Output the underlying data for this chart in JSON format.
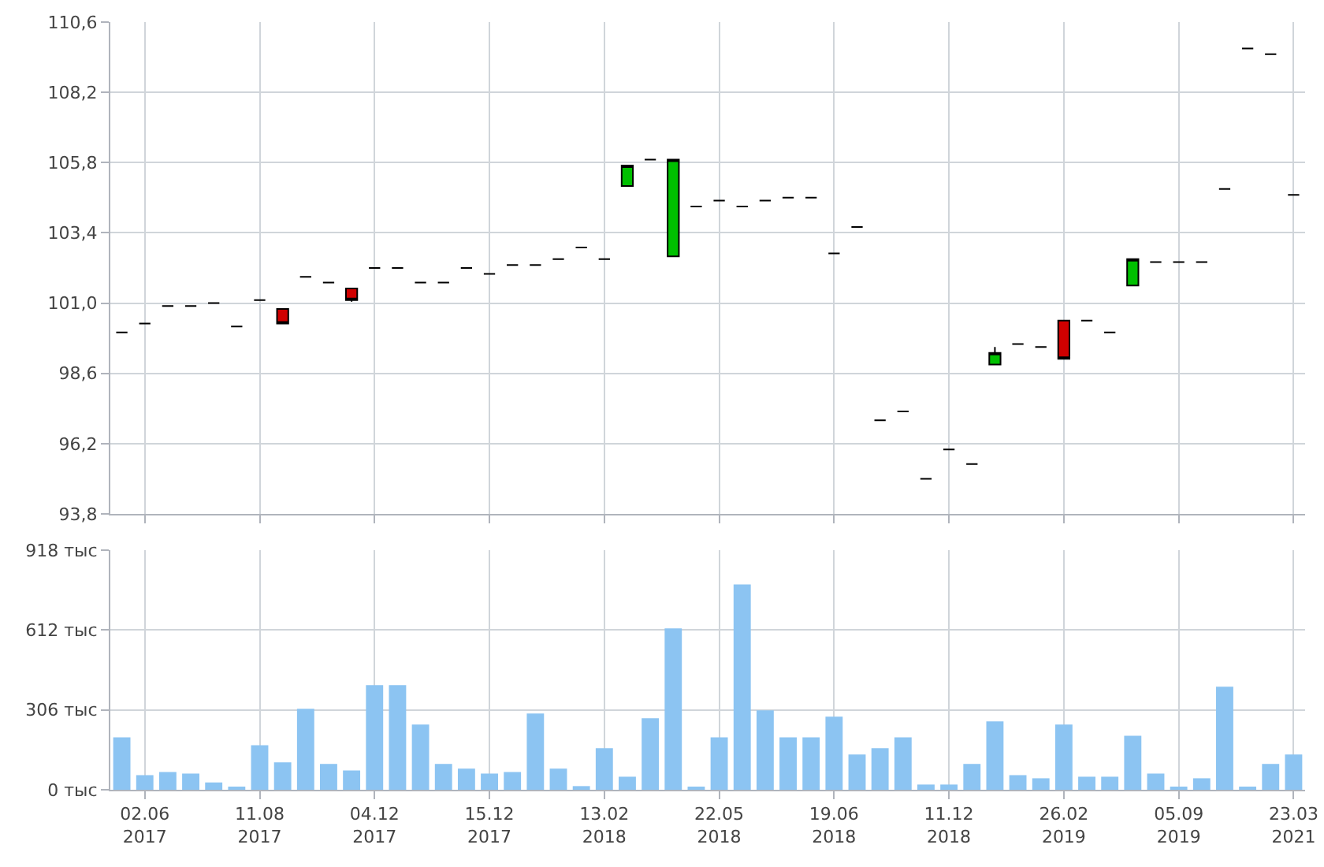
{
  "chart_data": [
    {
      "type": "candlestick",
      "categories": [
        null,
        null,
        null,
        null,
        null,
        null,
        null,
        null,
        null,
        null,
        null,
        null,
        null,
        null,
        null,
        null,
        null,
        null,
        null,
        null,
        null,
        null,
        null,
        null,
        null,
        null,
        null,
        null,
        null,
        null,
        null,
        null,
        null,
        null,
        null,
        null,
        null,
        null,
        null,
        null,
        null,
        null,
        null,
        null,
        null,
        null,
        null,
        null,
        null,
        null,
        null,
        null
      ],
      "ohlc": [
        [
          100.0,
          100.0,
          100.0,
          100.0
        ],
        [
          100.3,
          100.3,
          100.3,
          100.3
        ],
        [
          100.9,
          100.9,
          100.9,
          100.9
        ],
        [
          100.9,
          100.9,
          100.9,
          100.9
        ],
        [
          101.0,
          101.0,
          101.0,
          101.0
        ],
        [
          100.2,
          100.2,
          100.2,
          100.2
        ],
        [
          101.1,
          101.1,
          101.1,
          101.1
        ],
        [
          100.8,
          100.8,
          100.3,
          100.3
        ],
        [
          101.9,
          101.9,
          101.9,
          101.9
        ],
        [
          101.7,
          101.7,
          101.7,
          101.7
        ],
        [
          101.5,
          101.5,
          101.05,
          101.1
        ],
        [
          102.2,
          102.2,
          102.2,
          102.2
        ],
        [
          102.2,
          102.2,
          102.2,
          102.2
        ],
        [
          101.7,
          101.7,
          101.7,
          101.7
        ],
        [
          101.7,
          101.7,
          101.7,
          101.7
        ],
        [
          102.2,
          102.2,
          102.2,
          102.2
        ],
        [
          102.0,
          102.0,
          102.0,
          102.0
        ],
        [
          102.3,
          102.3,
          102.3,
          102.3
        ],
        [
          102.3,
          102.3,
          102.3,
          102.3
        ],
        [
          102.5,
          102.5,
          102.5,
          102.5
        ],
        [
          102.9,
          102.9,
          102.9,
          102.9
        ],
        [
          102.5,
          102.5,
          102.5,
          102.5
        ],
        [
          105.0,
          105.7,
          105.0,
          105.7
        ],
        [
          105.9,
          105.9,
          105.9,
          105.9
        ],
        [
          102.6,
          105.9,
          102.6,
          105.9
        ],
        [
          104.3,
          104.3,
          104.3,
          104.3
        ],
        [
          104.5,
          104.5,
          104.5,
          104.5
        ],
        [
          104.3,
          104.3,
          104.3,
          104.3
        ],
        [
          104.5,
          104.5,
          104.5,
          104.5
        ],
        [
          104.6,
          104.6,
          104.6,
          104.6
        ],
        [
          104.6,
          104.6,
          104.6,
          104.6
        ],
        [
          102.7,
          102.7,
          102.7,
          102.7
        ],
        [
          103.6,
          103.6,
          103.6,
          103.6
        ],
        [
          97.0,
          97.0,
          97.0,
          97.0
        ],
        [
          97.3,
          97.3,
          97.3,
          97.3
        ],
        [
          95.0,
          95.0,
          95.0,
          95.0
        ],
        [
          96.0,
          96.0,
          96.0,
          96.0
        ],
        [
          95.5,
          95.5,
          95.5,
          95.5
        ],
        [
          98.9,
          99.5,
          98.9,
          99.3
        ],
        [
          99.6,
          99.6,
          99.6,
          99.6
        ],
        [
          99.5,
          99.5,
          99.5,
          99.5
        ],
        [
          100.4,
          100.4,
          99.1,
          99.1
        ],
        [
          100.4,
          100.4,
          100.4,
          100.4
        ],
        [
          100.0,
          100.0,
          100.0,
          100.0
        ],
        [
          101.6,
          102.5,
          101.6,
          102.5
        ],
        [
          102.4,
          102.4,
          102.4,
          102.4
        ],
        [
          102.4,
          102.4,
          102.4,
          102.4
        ],
        [
          102.4,
          102.4,
          102.4,
          102.4
        ],
        [
          104.9,
          104.9,
          104.9,
          104.9
        ],
        [
          109.7,
          109.7,
          109.7,
          109.7
        ],
        [
          109.5,
          109.5,
          109.5,
          109.5
        ],
        [
          104.7,
          104.7,
          104.7,
          104.7
        ]
      ],
      "ylim": [
        93.8,
        110.6
      ],
      "yticks": [
        {
          "value": 93.8,
          "label": "93,8"
        },
        {
          "value": 96.2,
          "label": "96,2"
        },
        {
          "value": 98.6,
          "label": "98,6"
        },
        {
          "value": 101.0,
          "label": "101,0"
        },
        {
          "value": 103.4,
          "label": "103,4"
        },
        {
          "value": 105.8,
          "label": "105,8"
        },
        {
          "value": 108.2,
          "label": "108,2"
        },
        {
          "value": 110.6,
          "label": "110,6"
        }
      ],
      "grid": true,
      "tick_labels": "y"
    },
    {
      "type": "bar",
      "categories": [
        null,
        "02.06\n2017",
        null,
        null,
        null,
        null,
        "11.08\n2017",
        null,
        null,
        null,
        null,
        "04.12\n2017",
        null,
        null,
        null,
        null,
        "15.12\n2017",
        null,
        null,
        null,
        null,
        "13.02\n2018",
        null,
        null,
        null,
        null,
        "22.05\n2018",
        null,
        null,
        null,
        null,
        "19.06\n2018",
        null,
        null,
        null,
        null,
        "11.12\n2018",
        null,
        null,
        null,
        null,
        "26.02\n2019",
        null,
        null,
        null,
        null,
        "05.09\n2019",
        null,
        null,
        null,
        null,
        "23.03\n2021"
      ],
      "values": [
        201,
        56,
        68,
        62,
        28,
        8,
        171,
        105,
        310,
        99,
        74,
        401,
        401,
        250,
        99,
        81,
        62,
        68,
        292,
        81,
        14,
        159,
        50,
        274,
        618,
        8,
        201,
        787,
        304,
        201,
        201,
        280,
        135,
        159,
        201,
        20,
        20,
        99,
        262,
        56,
        44,
        250,
        50,
        50,
        207,
        62,
        8,
        44,
        395,
        8,
        99,
        135
      ],
      "color": "#8cc4f2",
      "ylim": [
        0,
        918
      ],
      "yticks": [
        {
          "value": 0,
          "label": "0 тыс"
        },
        {
          "value": 306,
          "label": "306 тыс"
        },
        {
          "value": 612,
          "label": "612 тыс"
        },
        {
          "value": 918,
          "label": "918 тыс"
        }
      ],
      "grid": true
    }
  ]
}
